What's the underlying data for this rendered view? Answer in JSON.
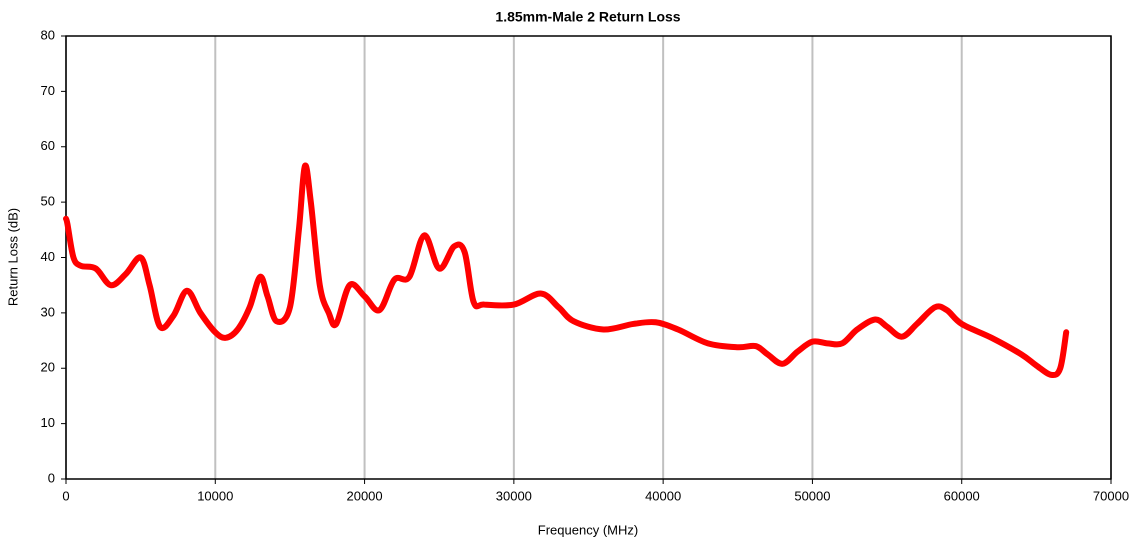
{
  "chart_data": {
    "type": "line",
    "title": "1.85mm-Male 2 Return Loss",
    "xlabel": "Frequency (MHz)",
    "ylabel": "Return Loss (dB)",
    "xlim": [
      0,
      70000
    ],
    "xticks": [
      0,
      10000,
      20000,
      30000,
      40000,
      50000,
      60000,
      70000
    ],
    "ylim": [
      0,
      80
    ],
    "yticks": [
      0,
      10,
      20,
      30,
      40,
      50,
      60,
      70,
      80
    ],
    "grid": "x",
    "series": [
      {
        "name": "Return Loss",
        "color": "#ff0000",
        "x": [
          0,
          100,
          500,
          1000,
          2000,
          3000,
          4000,
          5000,
          5600,
          6300,
          7200,
          8100,
          9000,
          10000,
          10700,
          11500,
          12300,
          13000,
          13500,
          14100,
          15000,
          15600,
          16000,
          16400,
          17000,
          17600,
          18100,
          19000,
          20000,
          21000,
          22000,
          23000,
          24000,
          25000,
          26000,
          26700,
          27300,
          28000,
          30000,
          31800,
          33000,
          34000,
          36000,
          38000,
          39500,
          41000,
          43000,
          45000,
          46200,
          47000,
          48000,
          49000,
          50000,
          51000,
          52000,
          53000,
          54200,
          55000,
          56000,
          57000,
          58200,
          59000,
          60000,
          62000,
          64000,
          65000,
          66000,
          66600,
          67000
        ],
        "values": [
          47,
          46,
          40,
          38.5,
          38,
          35,
          37,
          40,
          35,
          27.5,
          29.5,
          34,
          30,
          26.5,
          25.5,
          27,
          31,
          36.5,
          33,
          28.5,
          31,
          45,
          56.5,
          50,
          35,
          30,
          28,
          35,
          33,
          30.5,
          36,
          36.5,
          44,
          38,
          42,
          41,
          32,
          31.5,
          31.5,
          33.5,
          31,
          28.5,
          27,
          28,
          28.3,
          27,
          24.5,
          23.8,
          24,
          22.5,
          20.8,
          23,
          24.8,
          24.5,
          24.5,
          27,
          28.8,
          27.5,
          25.7,
          28,
          31,
          30.5,
          28,
          25.5,
          22.5,
          20.5,
          18.8,
          20,
          26.5
        ]
      }
    ]
  }
}
